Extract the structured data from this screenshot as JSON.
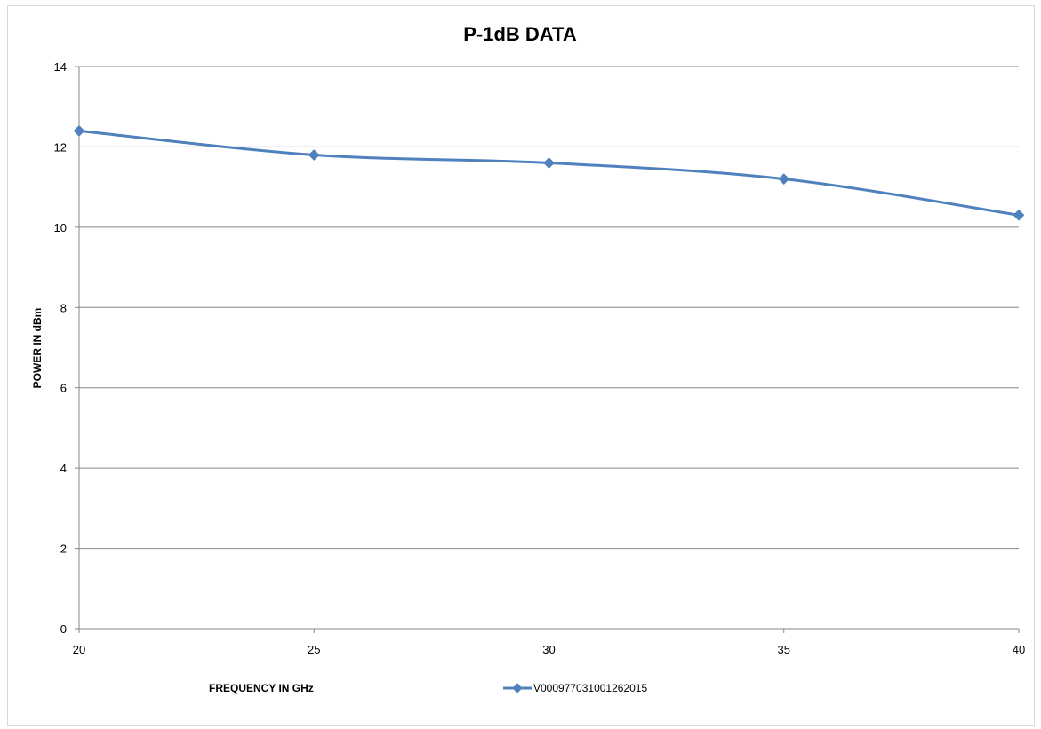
{
  "chart_data": {
    "type": "line",
    "title": "P-1dB DATA",
    "xlabel": "FREQUENCY IN GHz",
    "ylabel": "POWER IN dBm",
    "x": [
      20,
      25,
      30,
      35,
      40
    ],
    "series": [
      {
        "name": "V000977031001262015",
        "values": [
          12.4,
          11.8,
          11.6,
          11.2,
          10.3
        ]
      }
    ],
    "xlim": [
      20,
      40
    ],
    "ylim": [
      0,
      14
    ],
    "x_ticks": [
      20,
      25,
      30,
      35,
      40
    ],
    "y_ticks": [
      0,
      2,
      4,
      6,
      8,
      10,
      12,
      14
    ],
    "grid": "horizontal",
    "legend_position": "bottom",
    "smooth": true,
    "marker": "diamond",
    "colors": {
      "series": "#4f81bd",
      "grid": "#868686",
      "axis": "#868686"
    }
  }
}
